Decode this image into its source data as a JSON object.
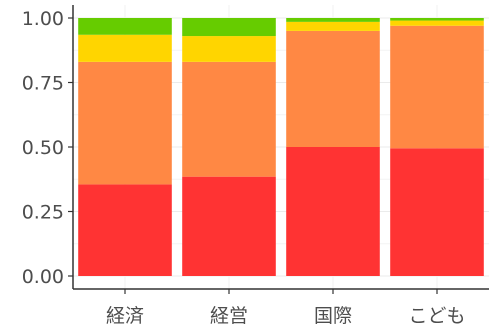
{
  "chart_data": {
    "type": "bar",
    "stacked": true,
    "categories": [
      "経済",
      "経営",
      "国際",
      "こども"
    ],
    "series": [
      {
        "color": "#FF3333",
        "values": [
          0.355,
          0.385,
          0.5,
          0.495
        ]
      },
      {
        "color": "#FF8844",
        "values": [
          0.475,
          0.445,
          0.45,
          0.475
        ]
      },
      {
        "color": "#FFD500",
        "values": [
          0.105,
          0.1,
          0.035,
          0.02
        ]
      },
      {
        "color": "#66CC00",
        "values": [
          0.065,
          0.07,
          0.015,
          0.01
        ]
      }
    ],
    "y_ticks": [
      "0.00",
      "0.25",
      "0.50",
      "0.75",
      "1.00"
    ],
    "y_tick_values": [
      0,
      0.25,
      0.5,
      0.75,
      1.0
    ],
    "ylim": [
      0,
      1.0
    ],
    "grid": true,
    "legend": "none",
    "title": "",
    "xlabel": "",
    "ylabel": ""
  }
}
